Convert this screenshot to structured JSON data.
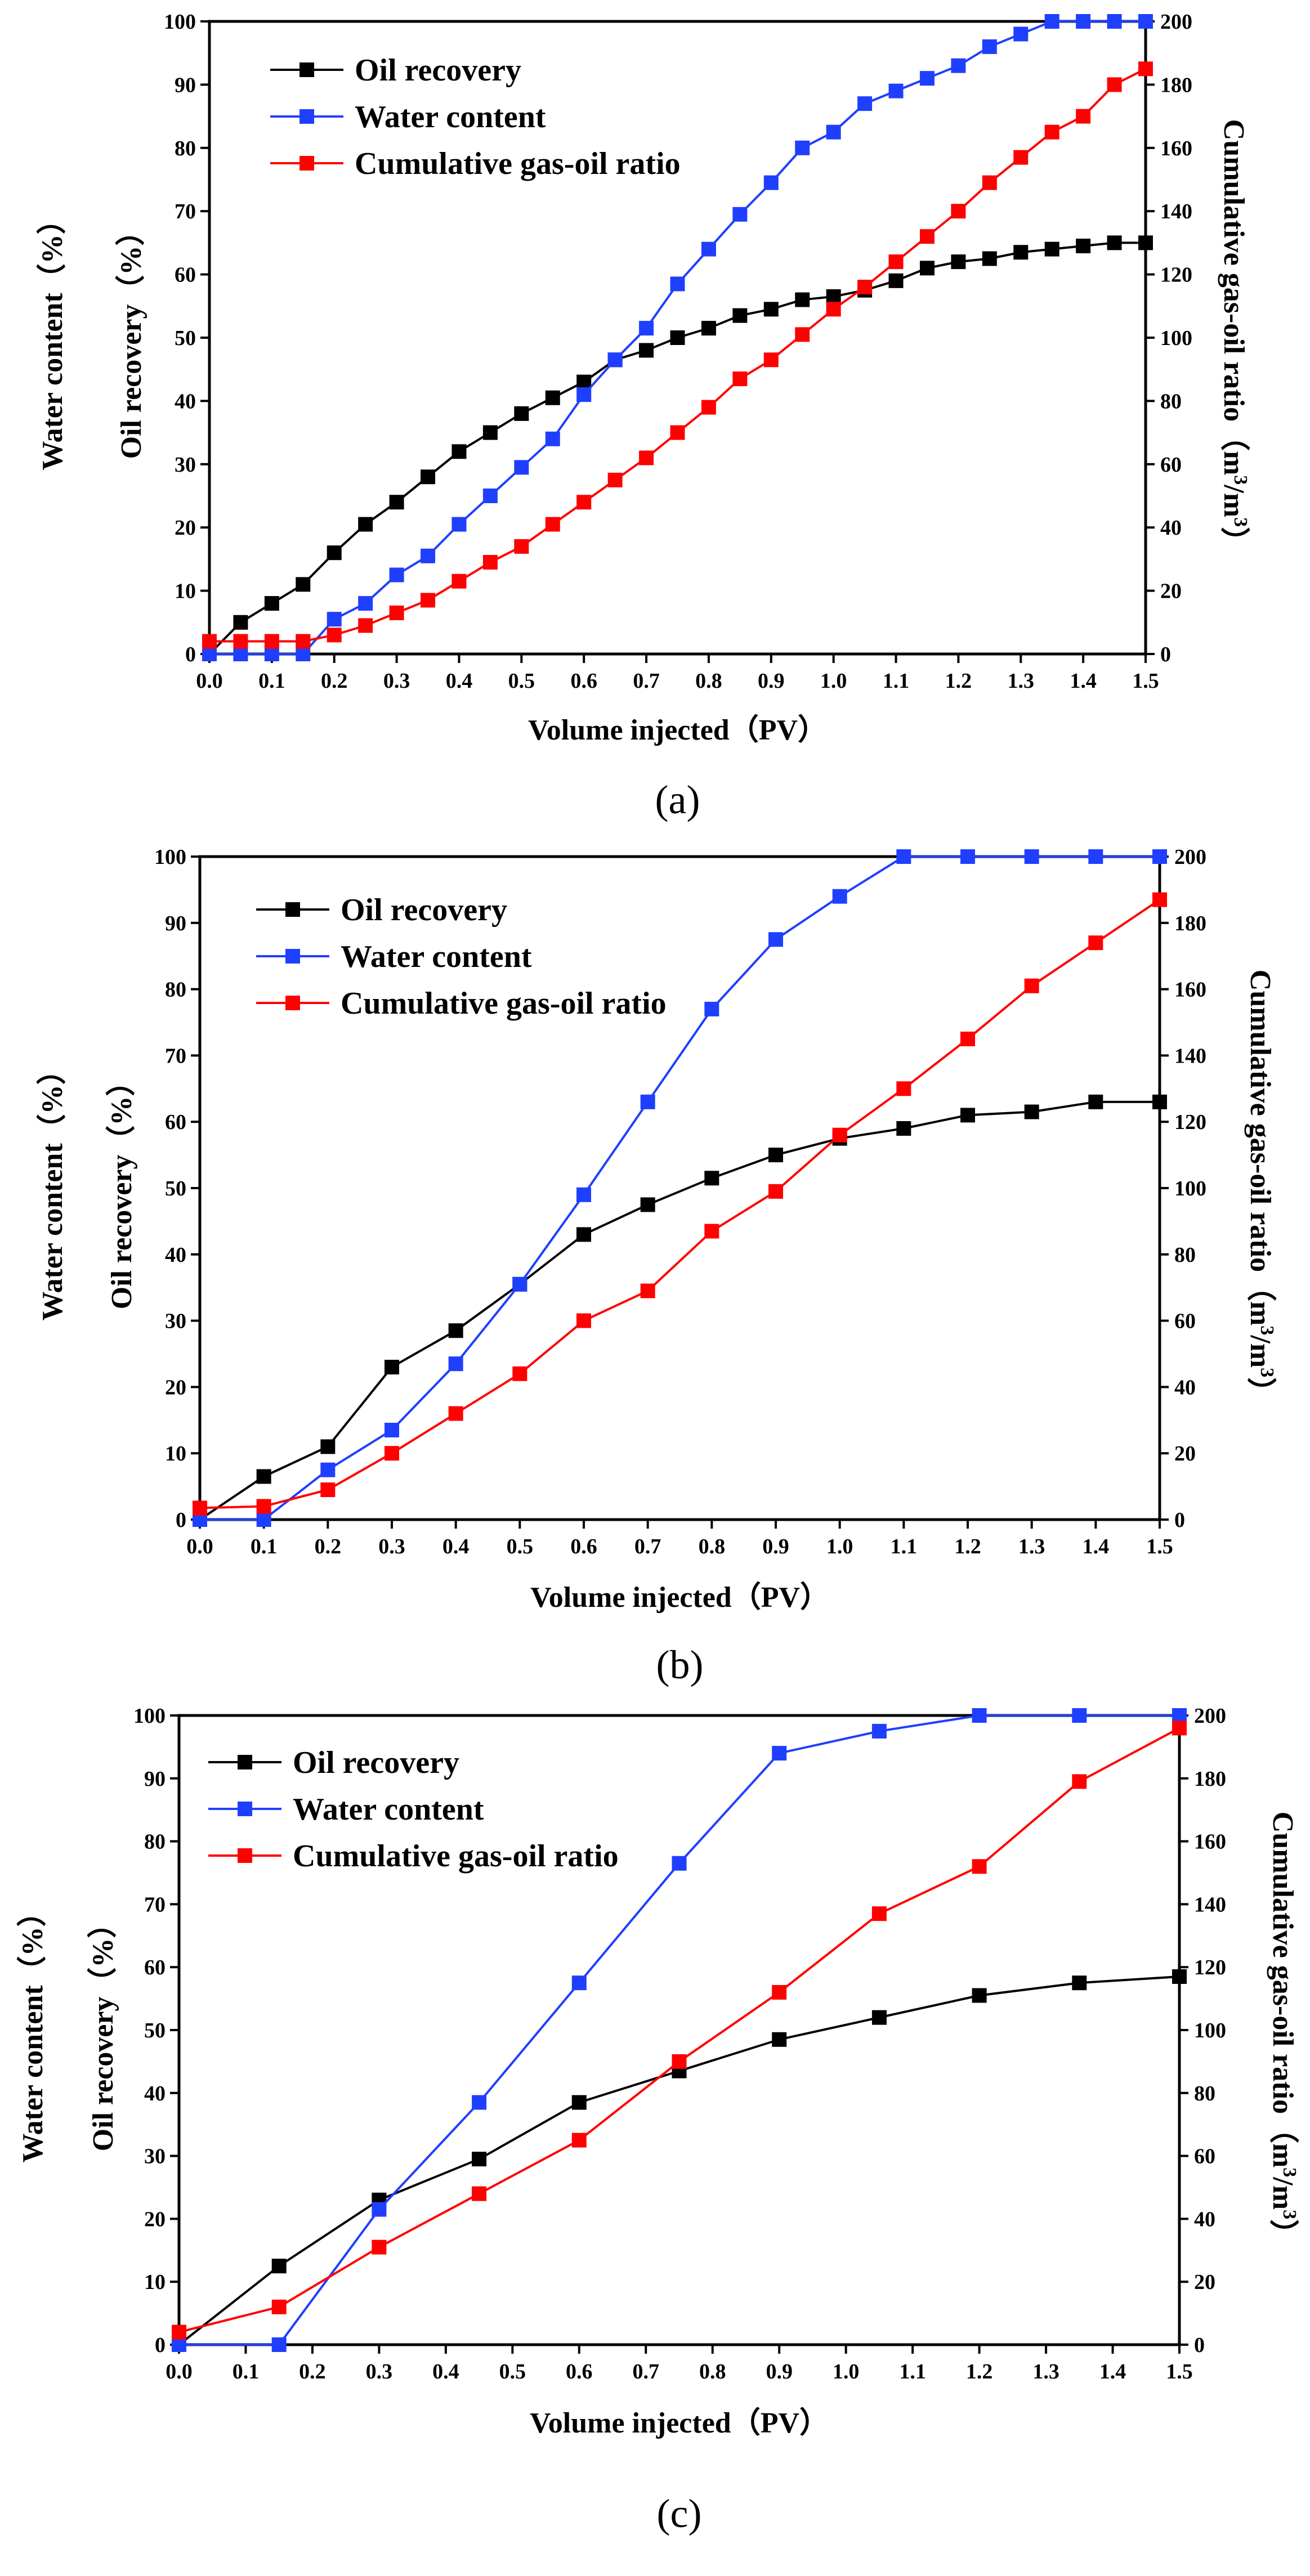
{
  "colors": {
    "oil": "#000000",
    "water": "#1f3fff",
    "gas": "#ff0000"
  },
  "chart_data": [
    {
      "type": "line",
      "caption": "(a)",
      "xlabel": "Volume injected（PV）",
      "ylabel_outer": "Water content（%）",
      "ylabel_inner": "Oil recovery（%）",
      "y2label": "Cumulative gas-oil ratio（m3/m3）",
      "xlim": [
        0,
        1.5
      ],
      "ylim": [
        0,
        100
      ],
      "y2lim": [
        0,
        200
      ],
      "x_tick_labels": [
        "0.0",
        "0.1",
        "0.2",
        "0.3",
        "0.4",
        "0.5",
        "0.6",
        "0.7",
        "0.8",
        "0.9",
        "1.0",
        "1.1",
        "1.2",
        "1.3",
        "1.4",
        "1.5"
      ],
      "y_tick_labels": [
        "0",
        "10",
        "20",
        "30",
        "40",
        "50",
        "60",
        "70",
        "80",
        "90",
        "100"
      ],
      "y2_tick_labels": [
        "0",
        "20",
        "40",
        "60",
        "80",
        "100",
        "120",
        "140",
        "160",
        "180",
        "200"
      ],
      "series": [
        {
          "name": "Oil recovery",
          "axis": "left",
          "color": "#000000",
          "x": [
            0,
            0.05,
            0.1,
            0.15,
            0.2,
            0.25,
            0.3,
            0.35,
            0.4,
            0.45,
            0.5,
            0.55,
            0.6,
            0.65,
            0.7,
            0.75,
            0.8,
            0.85,
            0.9,
            0.95,
            1.0,
            1.05,
            1.1,
            1.15,
            1.2,
            1.25,
            1.3,
            1.35,
            1.4,
            1.45,
            1.5
          ],
          "y": [
            0,
            5,
            8,
            11,
            16,
            20.5,
            24,
            28,
            32,
            35,
            38,
            40.5,
            43,
            46.5,
            48,
            50,
            51.5,
            53.5,
            54.5,
            56,
            56.5,
            57.5,
            59,
            61,
            62,
            62.5,
            63.5,
            64,
            64.5,
            65,
            65
          ]
        },
        {
          "name": "Water content",
          "axis": "left",
          "color": "#1f3fff",
          "x": [
            0,
            0.05,
            0.1,
            0.15,
            0.2,
            0.25,
            0.3,
            0.35,
            0.4,
            0.45,
            0.5,
            0.55,
            0.6,
            0.65,
            0.7,
            0.75,
            0.8,
            0.85,
            0.9,
            0.95,
            1.0,
            1.05,
            1.1,
            1.15,
            1.2,
            1.25,
            1.3,
            1.35,
            1.4,
            1.45,
            1.5
          ],
          "y": [
            0,
            0,
            0,
            0,
            5.5,
            8,
            12.5,
            15.5,
            20.5,
            25,
            29.5,
            34,
            41,
            46.5,
            51.5,
            58.5,
            64,
            69.5,
            74.5,
            80,
            82.5,
            87,
            89,
            91,
            93,
            96,
            98,
            100,
            100,
            100,
            100
          ]
        },
        {
          "name": "Cumulative gas-oil ratio",
          "axis": "right",
          "color": "#ff0000",
          "x": [
            0,
            0.05,
            0.1,
            0.15,
            0.2,
            0.25,
            0.3,
            0.35,
            0.4,
            0.45,
            0.5,
            0.55,
            0.6,
            0.65,
            0.7,
            0.75,
            0.8,
            0.85,
            0.9,
            0.95,
            1.0,
            1.05,
            1.1,
            1.15,
            1.2,
            1.25,
            1.3,
            1.35,
            1.4,
            1.45,
            1.5
          ],
          "y": [
            4,
            4,
            4,
            4,
            6,
            9,
            13,
            17,
            23,
            29,
            34,
            41,
            48,
            55,
            62,
            70,
            78,
            87,
            93,
            101,
            109,
            116,
            124,
            132,
            140,
            149,
            157,
            165,
            170,
            180,
            185
          ]
        }
      ]
    },
    {
      "type": "line",
      "caption": "(b)",
      "xlabel": "Volume injected（PV）",
      "ylabel_outer": "Water content（%）",
      "ylabel_inner": "Oil recovery（%）",
      "y2label": "Cumulative gas-oil ratio（m3/m3）",
      "xlim": [
        0,
        1.5
      ],
      "ylim": [
        0,
        100
      ],
      "y2lim": [
        0,
        200
      ],
      "x_tick_labels": [
        "0.0",
        "0.1",
        "0.2",
        "0.3",
        "0.4",
        "0.5",
        "0.6",
        "0.7",
        "0.8",
        "0.9",
        "1.0",
        "1.1",
        "1.2",
        "1.3",
        "1.4",
        "1.5"
      ],
      "y_tick_labels": [
        "0",
        "10",
        "20",
        "30",
        "40",
        "50",
        "60",
        "70",
        "80",
        "90",
        "100"
      ],
      "y2_tick_labels": [
        "0",
        "20",
        "40",
        "60",
        "80",
        "100",
        "120",
        "140",
        "160",
        "180",
        "200"
      ],
      "series": [
        {
          "name": "Oil recovery",
          "axis": "left",
          "color": "#000000",
          "x": [
            0,
            0.1,
            0.2,
            0.3,
            0.4,
            0.5,
            0.6,
            0.7,
            0.8,
            0.9,
            1.0,
            1.1,
            1.2,
            1.3,
            1.4,
            1.5
          ],
          "y": [
            0,
            6.5,
            11,
            23,
            28.5,
            35.5,
            43,
            47.5,
            51.5,
            55,
            57.5,
            59,
            61,
            61.5,
            63,
            63
          ]
        },
        {
          "name": "Water content",
          "axis": "left",
          "color": "#1f3fff",
          "x": [
            0,
            0.1,
            0.2,
            0.3,
            0.4,
            0.5,
            0.6,
            0.7,
            0.8,
            0.9,
            1.0,
            1.1,
            1.2,
            1.3,
            1.4,
            1.5
          ],
          "y": [
            0,
            0,
            7.5,
            13.5,
            23.5,
            35.5,
            49,
            63,
            77,
            87.5,
            94,
            100,
            100,
            100,
            100,
            100
          ]
        },
        {
          "name": "Cumulative gas-oil ratio",
          "axis": "right",
          "color": "#ff0000",
          "x": [
            0,
            0.1,
            0.2,
            0.3,
            0.4,
            0.5,
            0.6,
            0.7,
            0.8,
            0.9,
            1.0,
            1.1,
            1.2,
            1.3,
            1.4,
            1.5
          ],
          "y": [
            3.5,
            4,
            9,
            20,
            32,
            44,
            60,
            69,
            87,
            99,
            116,
            130,
            145,
            161,
            174,
            187
          ]
        }
      ]
    },
    {
      "type": "line",
      "caption": "(c)",
      "xlabel": "Volume injected（PV）",
      "ylabel_outer": "Water content（%）",
      "ylabel_inner": "Oil recovery（%）",
      "y2label": "Cumulative gas-oil ratio（m3/m3）",
      "xlim": [
        0,
        1.5
      ],
      "ylim": [
        0,
        100
      ],
      "y2lim": [
        0,
        200
      ],
      "x_tick_labels": [
        "0.0",
        "0.1",
        "0.2",
        "0.3",
        "0.4",
        "0.5",
        "0.6",
        "0.7",
        "0.8",
        "0.9",
        "1.0",
        "1.1",
        "1.2",
        "1.3",
        "1.4",
        "1.5"
      ],
      "y_tick_labels": [
        "0",
        "10",
        "20",
        "30",
        "40",
        "50",
        "60",
        "70",
        "80",
        "90",
        "100"
      ],
      "y2_tick_labels": [
        "0",
        "20",
        "40",
        "60",
        "80",
        "100",
        "120",
        "140",
        "160",
        "180",
        "200"
      ],
      "series": [
        {
          "name": "Oil recovery",
          "axis": "left",
          "color": "#000000",
          "x": [
            0,
            0.15,
            0.3,
            0.45,
            0.6,
            0.75,
            0.9,
            1.05,
            1.2,
            1.35,
            1.5
          ],
          "y": [
            0,
            12.5,
            23,
            29.5,
            38.5,
            43.5,
            48.5,
            52,
            55.5,
            57.5,
            58.5
          ]
        },
        {
          "name": "Water content",
          "axis": "left",
          "color": "#1f3fff",
          "x": [
            0,
            0.15,
            0.3,
            0.45,
            0.6,
            0.75,
            0.9,
            1.05,
            1.2,
            1.35,
            1.5
          ],
          "y": [
            0,
            0,
            21.5,
            38.5,
            57.5,
            76.5,
            94,
            97.5,
            100,
            100,
            100
          ]
        },
        {
          "name": "Cumulative gas-oil ratio",
          "axis": "right",
          "color": "#ff0000",
          "x": [
            0,
            0.15,
            0.3,
            0.45,
            0.6,
            0.75,
            0.9,
            1.05,
            1.2,
            1.35,
            1.5
          ],
          "y": [
            4,
            12,
            31,
            48,
            65,
            90,
            112,
            137,
            152,
            179,
            196
          ]
        }
      ]
    }
  ]
}
